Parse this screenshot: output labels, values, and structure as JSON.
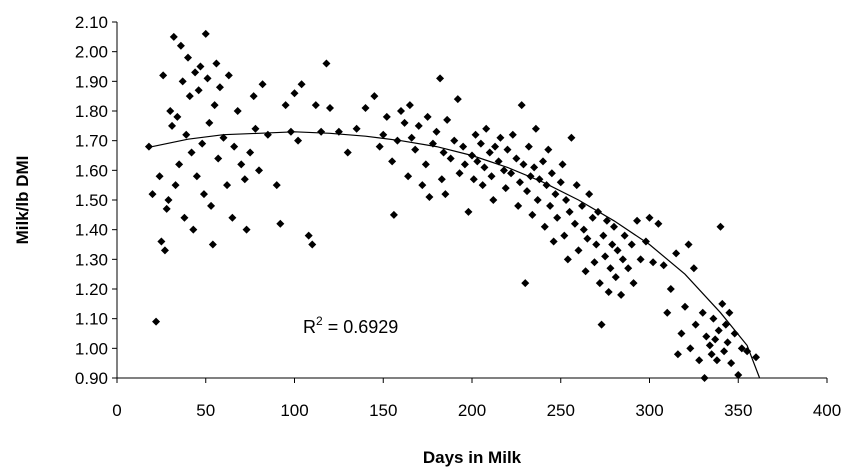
{
  "chart_data": {
    "type": "scatter",
    "title": "",
    "xlabel": "Days in Milk",
    "ylabel": "Milk/lb DMI",
    "xlim": [
      0,
      400
    ],
    "ylim": [
      0.9,
      2.1
    ],
    "x_ticks": [
      0,
      50,
      100,
      150,
      200,
      250,
      300,
      350,
      400
    ],
    "y_ticks": [
      "0.90",
      "1.00",
      "1.10",
      "1.20",
      "1.30",
      "1.40",
      "1.50",
      "1.60",
      "1.70",
      "1.80",
      "1.90",
      "2.00",
      "2.10"
    ],
    "grid": false,
    "legend": "none",
    "marker": "diamond",
    "marker_color": "#000000",
    "annotation": {
      "base": "R",
      "superscript": "2",
      "rest": " = 0.6929"
    },
    "trendline": {
      "type": "polynomial",
      "points": [
        [
          20,
          1.68
        ],
        [
          40,
          1.705
        ],
        [
          60,
          1.72
        ],
        [
          80,
          1.725
        ],
        [
          100,
          1.73
        ],
        [
          120,
          1.725
        ],
        [
          140,
          1.715
        ],
        [
          160,
          1.7
        ],
        [
          180,
          1.68
        ],
        [
          200,
          1.65
        ],
        [
          220,
          1.61
        ],
        [
          240,
          1.56
        ],
        [
          260,
          1.5
        ],
        [
          280,
          1.43
        ],
        [
          300,
          1.35
        ],
        [
          320,
          1.25
        ],
        [
          340,
          1.12
        ],
        [
          355,
          1.01
        ],
        [
          362,
          0.9
        ]
      ]
    },
    "points": [
      [
        22,
        1.09
      ],
      [
        18,
        1.68
      ],
      [
        20,
        1.52
      ],
      [
        24,
        1.58
      ],
      [
        25,
        1.36
      ],
      [
        26,
        1.92
      ],
      [
        27,
        1.33
      ],
      [
        28,
        1.47
      ],
      [
        29,
        1.5
      ],
      [
        30,
        1.8
      ],
      [
        31,
        1.75
      ],
      [
        32,
        2.05
      ],
      [
        33,
        1.55
      ],
      [
        34,
        1.78
      ],
      [
        35,
        1.62
      ],
      [
        36,
        2.02
      ],
      [
        37,
        1.9
      ],
      [
        38,
        1.44
      ],
      [
        39,
        1.72
      ],
      [
        40,
        1.98
      ],
      [
        41,
        1.85
      ],
      [
        42,
        1.66
      ],
      [
        43,
        1.4
      ],
      [
        44,
        1.93
      ],
      [
        45,
        1.58
      ],
      [
        46,
        1.87
      ],
      [
        47,
        1.95
      ],
      [
        48,
        1.69
      ],
      [
        49,
        1.52
      ],
      [
        50,
        2.06
      ],
      [
        51,
        1.91
      ],
      [
        52,
        1.76
      ],
      [
        53,
        1.48
      ],
      [
        54,
        1.35
      ],
      [
        55,
        1.82
      ],
      [
        56,
        1.96
      ],
      [
        57,
        1.64
      ],
      [
        58,
        1.88
      ],
      [
        60,
        1.71
      ],
      [
        62,
        1.55
      ],
      [
        63,
        1.92
      ],
      [
        65,
        1.44
      ],
      [
        66,
        1.68
      ],
      [
        68,
        1.8
      ],
      [
        70,
        1.62
      ],
      [
        72,
        1.57
      ],
      [
        73,
        1.4
      ],
      [
        75,
        1.66
      ],
      [
        77,
        1.85
      ],
      [
        78,
        1.74
      ],
      [
        80,
        1.6
      ],
      [
        82,
        1.89
      ],
      [
        85,
        1.72
      ],
      [
        90,
        1.55
      ],
      [
        92,
        1.42
      ],
      [
        95,
        1.82
      ],
      [
        98,
        1.73
      ],
      [
        100,
        1.86
      ],
      [
        102,
        1.7
      ],
      [
        104,
        1.89
      ],
      [
        108,
        1.38
      ],
      [
        110,
        1.35
      ],
      [
        112,
        1.82
      ],
      [
        115,
        1.73
      ],
      [
        118,
        1.96
      ],
      [
        120,
        1.81
      ],
      [
        125,
        1.73
      ],
      [
        130,
        1.66
      ],
      [
        135,
        1.74
      ],
      [
        140,
        1.81
      ],
      [
        145,
        1.85
      ],
      [
        148,
        1.68
      ],
      [
        150,
        1.72
      ],
      [
        152,
        1.78
      ],
      [
        155,
        1.63
      ],
      [
        156,
        1.45
      ],
      [
        158,
        1.7
      ],
      [
        160,
        1.8
      ],
      [
        162,
        1.76
      ],
      [
        164,
        1.58
      ],
      [
        165,
        1.82
      ],
      [
        166,
        1.71
      ],
      [
        168,
        1.67
      ],
      [
        170,
        1.75
      ],
      [
        172,
        1.55
      ],
      [
        174,
        1.62
      ],
      [
        175,
        1.78
      ],
      [
        176,
        1.51
      ],
      [
        178,
        1.69
      ],
      [
        180,
        1.73
      ],
      [
        182,
        1.91
      ],
      [
        183,
        1.57
      ],
      [
        184,
        1.66
      ],
      [
        185,
        1.52
      ],
      [
        186,
        1.77
      ],
      [
        188,
        1.64
      ],
      [
        190,
        1.7
      ],
      [
        192,
        1.84
      ],
      [
        193,
        1.59
      ],
      [
        195,
        1.68
      ],
      [
        196,
        1.62
      ],
      [
        198,
        1.46
      ],
      [
        200,
        1.65
      ],
      [
        201,
        1.57
      ],
      [
        202,
        1.72
      ],
      [
        203,
        1.63
      ],
      [
        205,
        1.69
      ],
      [
        206,
        1.55
      ],
      [
        207,
        1.61
      ],
      [
        208,
        1.74
      ],
      [
        210,
        1.66
      ],
      [
        211,
        1.58
      ],
      [
        212,
        1.5
      ],
      [
        213,
        1.68
      ],
      [
        215,
        1.63
      ],
      [
        216,
        1.71
      ],
      [
        218,
        1.6
      ],
      [
        219,
        1.54
      ],
      [
        220,
        1.67
      ],
      [
        222,
        1.59
      ],
      [
        223,
        1.72
      ],
      [
        225,
        1.64
      ],
      [
        226,
        1.48
      ],
      [
        227,
        1.56
      ],
      [
        228,
        1.82
      ],
      [
        229,
        1.62
      ],
      [
        230,
        1.22
      ],
      [
        231,
        1.53
      ],
      [
        232,
        1.68
      ],
      [
        233,
        1.58
      ],
      [
        234,
        1.45
      ],
      [
        235,
        1.61
      ],
      [
        236,
        1.74
      ],
      [
        237,
        1.5
      ],
      [
        238,
        1.57
      ],
      [
        240,
        1.63
      ],
      [
        241,
        1.41
      ],
      [
        242,
        1.55
      ],
      [
        243,
        1.67
      ],
      [
        244,
        1.48
      ],
      [
        245,
        1.59
      ],
      [
        246,
        1.36
      ],
      [
        247,
        1.52
      ],
      [
        248,
        1.44
      ],
      [
        250,
        1.56
      ],
      [
        251,
        1.62
      ],
      [
        252,
        1.38
      ],
      [
        253,
        1.5
      ],
      [
        254,
        1.3
      ],
      [
        255,
        1.46
      ],
      [
        256,
        1.71
      ],
      [
        258,
        1.42
      ],
      [
        259,
        1.55
      ],
      [
        260,
        1.33
      ],
      [
        262,
        1.48
      ],
      [
        263,
        1.4
      ],
      [
        264,
        1.26
      ],
      [
        265,
        1.37
      ],
      [
        266,
        1.52
      ],
      [
        268,
        1.44
      ],
      [
        269,
        1.29
      ],
      [
        270,
        1.35
      ],
      [
        271,
        1.46
      ],
      [
        272,
        1.22
      ],
      [
        273,
        1.08
      ],
      [
        274,
        1.38
      ],
      [
        275,
        1.31
      ],
      [
        276,
        1.43
      ],
      [
        277,
        1.19
      ],
      [
        278,
        1.27
      ],
      [
        279,
        1.35
      ],
      [
        280,
        1.41
      ],
      [
        281,
        1.24
      ],
      [
        282,
        1.33
      ],
      [
        284,
        1.18
      ],
      [
        285,
        1.3
      ],
      [
        286,
        1.38
      ],
      [
        288,
        1.27
      ],
      [
        290,
        1.35
      ],
      [
        291,
        1.22
      ],
      [
        293,
        1.43
      ],
      [
        295,
        1.3
      ],
      [
        298,
        1.36
      ],
      [
        300,
        1.44
      ],
      [
        302,
        1.29
      ],
      [
        305,
        1.42
      ],
      [
        308,
        1.28
      ],
      [
        310,
        1.12
      ],
      [
        312,
        1.2
      ],
      [
        315,
        1.32
      ],
      [
        316,
        0.98
      ],
      [
        318,
        1.05
      ],
      [
        320,
        1.14
      ],
      [
        322,
        1.35
      ],
      [
        323,
        1.0
      ],
      [
        325,
        1.27
      ],
      [
        326,
        1.08
      ],
      [
        328,
        0.96
      ],
      [
        330,
        1.12
      ],
      [
        331,
        0.9
      ],
      [
        332,
        1.04
      ],
      [
        334,
        1.01
      ],
      [
        335,
        0.98
      ],
      [
        336,
        1.1
      ],
      [
        337,
        1.03
      ],
      [
        338,
        0.96
      ],
      [
        339,
        1.06
      ],
      [
        340,
        1.41
      ],
      [
        341,
        1.15
      ],
      [
        342,
        0.99
      ],
      [
        343,
        1.08
      ],
      [
        344,
        1.02
      ],
      [
        345,
        1.12
      ],
      [
        346,
        0.95
      ],
      [
        348,
        1.05
      ],
      [
        350,
        0.91
      ],
      [
        352,
        1.0
      ],
      [
        355,
        0.99
      ],
      [
        360,
        0.97
      ]
    ]
  }
}
